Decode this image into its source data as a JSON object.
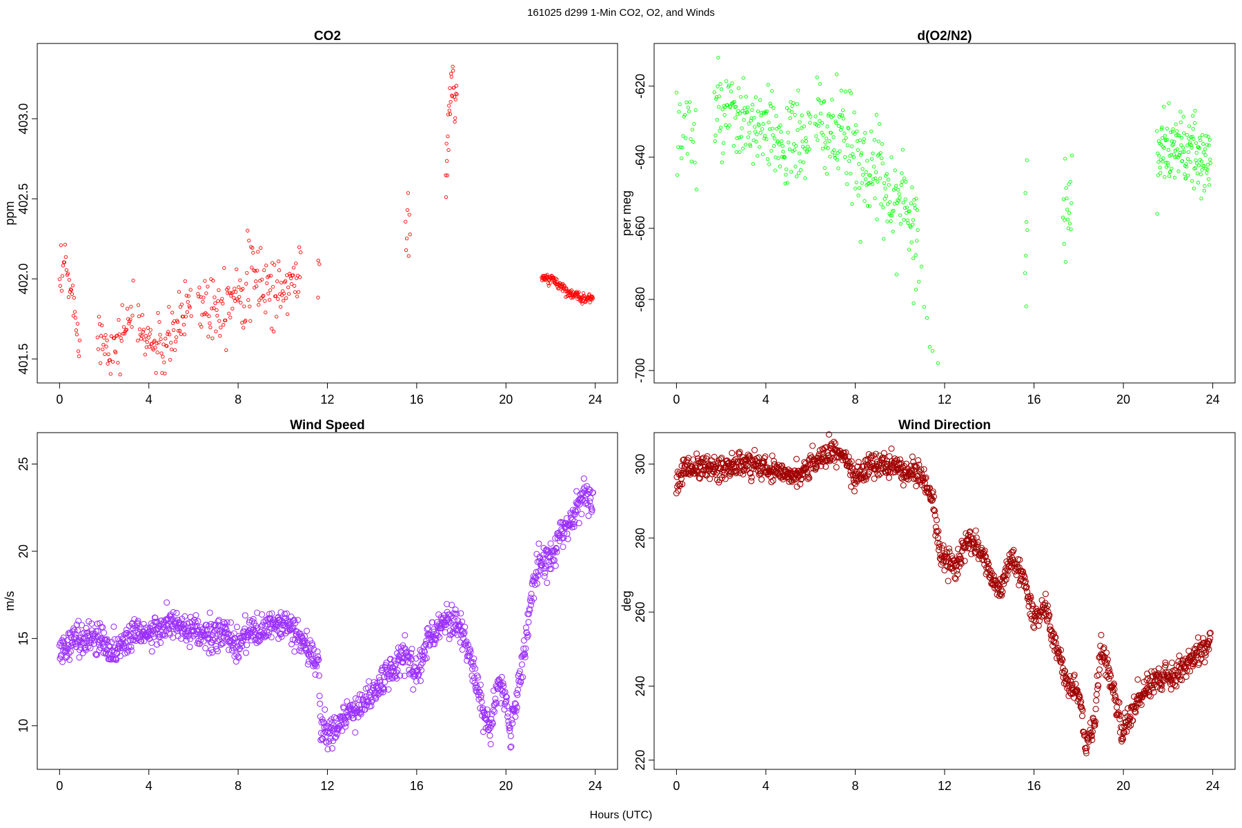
{
  "figure": {
    "suptitle": "161025   d299   1-Min CO2, O2, and Winds",
    "xlabel": "Hours (UTC)"
  },
  "chart_data": [
    {
      "type": "scatter",
      "title": "CO2",
      "ylabel": "ppm",
      "xlim": [
        -1,
        25
      ],
      "ylim": [
        401.35,
        403.47
      ],
      "xticks": [
        0,
        4,
        8,
        12,
        16,
        20,
        24
      ],
      "yticks": [
        401.5,
        402.0,
        402.5,
        403.0
      ],
      "ytick_labels": [
        "401.5",
        "402.0",
        "402.5",
        "403.0"
      ],
      "color": "#ff0000",
      "segments": [
        {
          "x0": 0.0,
          "x1": 0.9,
          "n": 30,
          "y": [
            401.9,
            402.1,
            401.95,
            401.8,
            401.7
          ],
          "noise": 0.09
        },
        {
          "x0": 1.7,
          "x1": 3.3,
          "n": 50,
          "y": [
            401.65,
            401.6,
            401.55,
            401.7,
            401.8
          ],
          "noise": 0.09
        },
        {
          "x0": 3.5,
          "x1": 5.9,
          "n": 80,
          "y": [
            401.7,
            401.6,
            401.55,
            401.7,
            401.9
          ],
          "noise": 0.09
        },
        {
          "x0": 6.2,
          "x1": 10.8,
          "n": 150,
          "y": [
            401.85,
            401.85,
            401.95,
            402.0,
            401.9,
            402.05
          ],
          "noise": 0.12
        },
        {
          "x0": 11.6,
          "x1": 11.6,
          "n": 3,
          "y": [
            402.1
          ],
          "noise": 0.07
        },
        {
          "x0": 15.5,
          "x1": 15.7,
          "n": 8,
          "y": [
            402.35
          ],
          "noise": 0.15
        },
        {
          "x0": 17.3,
          "x1": 17.8,
          "n": 28,
          "y": [
            402.57,
            403.25,
            403.1
          ],
          "noise": 0.09
        },
        {
          "x0": 21.6,
          "x1": 23.9,
          "n": 140,
          "y": [
            402.0,
            402.0,
            401.95,
            401.9,
            401.88,
            401.88
          ],
          "noise": 0.015
        }
      ]
    },
    {
      "type": "scatter",
      "title": "d(O2/N2)",
      "ylabel": "per meg",
      "xlim": [
        -1,
        25
      ],
      "ylim": [
        -703.5,
        -608
      ],
      "xticks": [
        0,
        4,
        8,
        12,
        16,
        20,
        24
      ],
      "yticks": [
        -700,
        -680,
        -660,
        -640,
        -620
      ],
      "ytick_labels": [
        "-700",
        "-680",
        "-660",
        "-640",
        "-620"
      ],
      "color": "#00ff00",
      "segments": [
        {
          "x0": 0.0,
          "x1": 0.9,
          "n": 25,
          "y": [
            -635,
            -630,
            -638
          ],
          "noise": 7
        },
        {
          "x0": 1.7,
          "x1": 6.0,
          "n": 180,
          "y": [
            -628,
            -630,
            -633,
            -636,
            -635
          ],
          "noise": 6
        },
        {
          "x0": 6.2,
          "x1": 10.8,
          "n": 200,
          "y": [
            -630,
            -635,
            -642,
            -650,
            -658
          ],
          "noise": 7
        },
        {
          "x0": 10.6,
          "x1": 11.7,
          "n": 10,
          "y": [
            -670,
            -685,
            -700
          ],
          "noise": 6
        },
        {
          "x0": 15.6,
          "x1": 15.7,
          "n": 7,
          "y": [
            -660
          ],
          "noise": 12
        },
        {
          "x0": 17.3,
          "x1": 17.7,
          "n": 18,
          "y": [
            -650,
            -655
          ],
          "noise": 8
        },
        {
          "x0": 21.5,
          "x1": 23.9,
          "n": 140,
          "y": [
            -640,
            -637,
            -638,
            -640,
            -642
          ],
          "noise": 5
        }
      ]
    },
    {
      "type": "scatter",
      "title": "Wind Speed",
      "ylabel": "m/s",
      "xlim": [
        -1,
        25
      ],
      "ylim": [
        7.5,
        26.8
      ],
      "xticks": [
        0,
        4,
        8,
        12,
        16,
        20,
        24
      ],
      "yticks": [
        10,
        15,
        20,
        25
      ],
      "ytick_labels": [
        "10",
        "15",
        "20",
        "25"
      ],
      "color": "#9b30ff",
      "marker_radius": 4,
      "series_points": [
        [
          0,
          14.3
        ],
        [
          0.5,
          14.8
        ],
        [
          1.0,
          15.1
        ],
        [
          1.5,
          15.0
        ],
        [
          2.0,
          14.9
        ],
        [
          2.4,
          14.2
        ],
        [
          3.0,
          14.9
        ],
        [
          3.5,
          15.6
        ],
        [
          4.0,
          15.2
        ],
        [
          4.5,
          15.5
        ],
        [
          5.0,
          15.9
        ],
        [
          5.5,
          15.5
        ],
        [
          6.0,
          15.3
        ],
        [
          6.5,
          15.2
        ],
        [
          7.0,
          15.1
        ],
        [
          7.5,
          15.3
        ],
        [
          8.0,
          14.5
        ],
        [
          8.4,
          15.5
        ],
        [
          9.0,
          15.3
        ],
        [
          9.5,
          15.7
        ],
        [
          10.0,
          15.8
        ],
        [
          10.5,
          15.5
        ],
        [
          11.0,
          14.6
        ],
        [
          11.4,
          13.8
        ],
        [
          11.6,
          13.6
        ],
        [
          11.7,
          10.0
        ],
        [
          12.0,
          9.4
        ],
        [
          12.5,
          10.2
        ],
        [
          13.0,
          10.6
        ],
        [
          13.5,
          11.2
        ],
        [
          14.0,
          11.8
        ],
        [
          14.5,
          12.6
        ],
        [
          15.0,
          13.3
        ],
        [
          15.5,
          14.2
        ],
        [
          16.0,
          13.0
        ],
        [
          16.4,
          14.5
        ],
        [
          17.0,
          15.8
        ],
        [
          17.5,
          16.2
        ],
        [
          18.0,
          15.5
        ],
        [
          18.5,
          13.5
        ],
        [
          19.0,
          10.8
        ],
        [
          19.3,
          9.5
        ],
        [
          19.7,
          12.5
        ],
        [
          20.0,
          11.6
        ],
        [
          20.2,
          9.5
        ],
        [
          20.6,
          12.5
        ],
        [
          20.9,
          15.0
        ],
        [
          21.2,
          18.0
        ],
        [
          21.5,
          19.5
        ],
        [
          22.0,
          19.5
        ],
        [
          22.5,
          21.0
        ],
        [
          23.0,
          22.0
        ],
        [
          23.5,
          23.3
        ],
        [
          23.9,
          22.7
        ]
      ],
      "noise": 0.45
    },
    {
      "type": "scatter",
      "title": "Wind Direction",
      "ylabel": "deg",
      "xlim": [
        -1,
        25
      ],
      "ylim": [
        217.5,
        308.5
      ],
      "xticks": [
        0,
        4,
        8,
        12,
        16,
        20,
        24
      ],
      "yticks": [
        220,
        240,
        260,
        280,
        300
      ],
      "ytick_labels": [
        "220",
        "240",
        "260",
        "280",
        "300"
      ],
      "color": "#a00000",
      "marker_radius": 4,
      "series_points": [
        [
          0,
          294
        ],
        [
          0.3,
          299
        ],
        [
          1.0,
          299
        ],
        [
          2.0,
          299
        ],
        [
          3.0,
          300
        ],
        [
          4.0,
          299
        ],
        [
          5.0,
          298
        ],
        [
          5.5,
          297
        ],
        [
          6.0,
          300
        ],
        [
          6.5,
          302
        ],
        [
          7.0,
          303
        ],
        [
          7.5,
          302
        ],
        [
          8.0,
          296
        ],
        [
          8.5,
          299
        ],
        [
          9.0,
          300
        ],
        [
          10.0,
          299
        ],
        [
          10.5,
          298
        ],
        [
          11.0,
          296
        ],
        [
          11.5,
          290
        ],
        [
          11.8,
          275
        ],
        [
          12.5,
          272
        ],
        [
          13.0,
          279
        ],
        [
          13.5,
          278
        ],
        [
          14.0,
          271
        ],
        [
          14.5,
          265
        ],
        [
          15.0,
          275
        ],
        [
          15.5,
          270
        ],
        [
          16.0,
          258
        ],
        [
          16.5,
          262
        ],
        [
          17.0,
          250
        ],
        [
          17.5,
          240
        ],
        [
          18.0,
          238
        ],
        [
          18.3,
          225
        ],
        [
          18.7,
          230
        ],
        [
          19.0,
          250
        ],
        [
          19.3,
          245
        ],
        [
          19.5,
          240
        ],
        [
          20.0,
          226
        ],
        [
          20.3,
          232
        ],
        [
          20.8,
          238
        ],
        [
          21.5,
          242
        ],
        [
          22.0,
          243
        ],
        [
          22.5,
          244
        ],
        [
          23.0,
          247
        ],
        [
          23.5,
          250
        ],
        [
          23.9,
          251
        ]
      ],
      "noise": 1.6
    }
  ]
}
